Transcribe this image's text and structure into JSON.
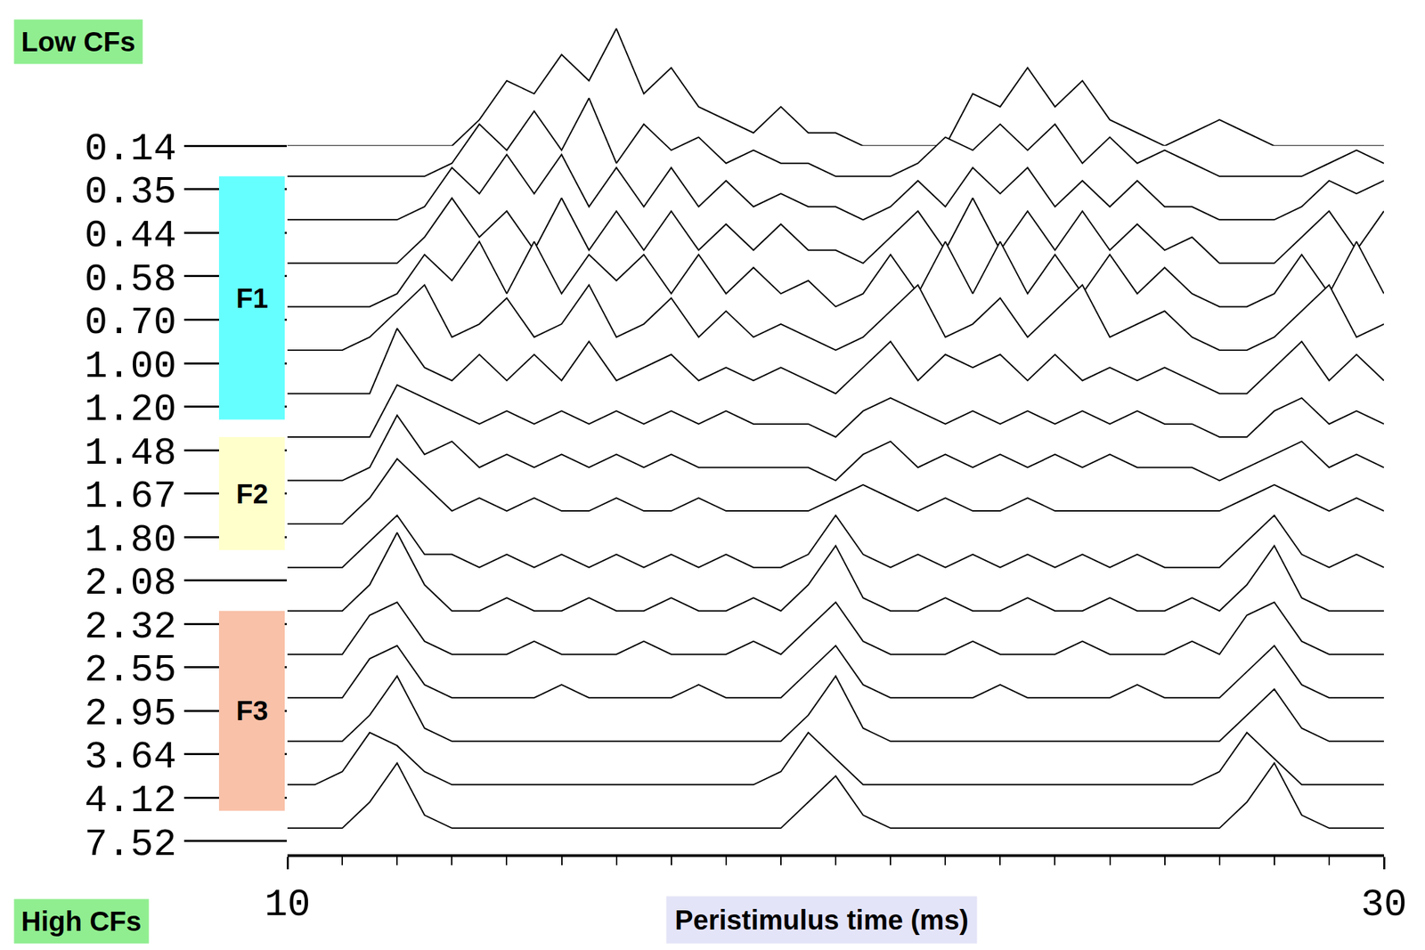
{
  "chart_data": {
    "type": "line",
    "x_label": "Peristimulus time (ms)",
    "top_label": "Low CFs",
    "bottom_label": "High CFs",
    "color": "#000000",
    "grid": false,
    "xlim": [
      10,
      30
    ],
    "xticks": [
      10,
      30
    ],
    "ylim": [
      0,
      10
    ],
    "x": [
      10,
      10.5,
      11,
      11.5,
      12,
      12.5,
      13,
      13.5,
      14,
      14.5,
      15,
      15.5,
      16,
      16.5,
      17,
      17.5,
      18,
      18.5,
      19,
      19.5,
      20,
      20.5,
      21,
      21.5,
      22,
      22.5,
      23,
      23.5,
      24,
      24.5,
      25,
      25.5,
      26,
      26.5,
      27,
      27.5,
      28,
      28.5,
      29,
      29.5,
      30
    ],
    "series": [
      {
        "name": "0.14",
        "values": [
          0,
          0,
          0,
          0,
          0,
          0,
          0,
          2,
          5,
          4,
          7,
          5,
          9,
          4,
          6,
          3,
          2,
          1,
          3,
          1,
          1,
          0,
          0,
          0,
          0,
          4,
          3,
          6,
          3,
          5,
          2,
          1,
          0,
          1,
          2,
          1,
          0,
          0,
          0,
          0,
          0
        ]
      },
      {
        "name": "0.35",
        "values": [
          1,
          1,
          1,
          1,
          1,
          1,
          2,
          5,
          3,
          6,
          3,
          7,
          2,
          5,
          3,
          4,
          2,
          3,
          2,
          2,
          1,
          1,
          1,
          2,
          4,
          3,
          5,
          3,
          5,
          2,
          4,
          2,
          3,
          2,
          1,
          1,
          1,
          1,
          2,
          3,
          2
        ]
      },
      {
        "name": "0.44",
        "values": [
          1,
          1,
          1,
          1,
          1,
          2,
          5,
          3,
          6,
          3,
          6,
          2,
          5,
          2,
          5,
          2,
          4,
          2,
          3,
          2,
          2,
          1,
          2,
          4,
          2,
          5,
          3,
          5,
          2,
          4,
          2,
          4,
          2,
          2,
          1,
          1,
          1,
          2,
          4,
          3,
          4
        ]
      },
      {
        "name": "0.58",
        "values": [
          1,
          1,
          1,
          1,
          1,
          3,
          6,
          3,
          5,
          2,
          6,
          2,
          5,
          2,
          5,
          2,
          4,
          2,
          4,
          2,
          2,
          1,
          3,
          5,
          2,
          6,
          2,
          5,
          2,
          5,
          2,
          4,
          2,
          3,
          1,
          1,
          1,
          3,
          5,
          2,
          5
        ]
      },
      {
        "name": "0.70",
        "values": [
          1,
          1,
          1,
          1,
          2,
          5,
          3,
          6,
          2,
          6,
          2,
          5,
          3,
          5,
          2,
          5,
          2,
          4,
          2,
          3,
          1,
          2,
          5,
          2,
          6,
          2,
          6,
          2,
          5,
          2,
          5,
          2,
          4,
          2,
          1,
          1,
          2,
          5,
          2,
          6,
          2
        ]
      },
      {
        "name": "1.00",
        "values": [
          1,
          1,
          1,
          2,
          4,
          6,
          2,
          3,
          5,
          2,
          3,
          6,
          2,
          3,
          5,
          2,
          4,
          2,
          3,
          2,
          1,
          2,
          4,
          6,
          2,
          3,
          5,
          2,
          4,
          6,
          2,
          3,
          4,
          2,
          1,
          1,
          2,
          4,
          6,
          2,
          3
        ]
      },
      {
        "name": "1.20",
        "values": [
          1,
          1,
          1,
          1,
          6,
          3,
          2,
          4,
          2,
          4,
          2,
          5,
          2,
          3,
          4,
          2,
          3,
          2,
          3,
          2,
          1,
          3,
          5,
          2,
          4,
          3,
          4,
          2,
          4,
          2,
          3,
          2,
          3,
          2,
          1,
          1,
          3,
          5,
          2,
          4,
          2
        ]
      },
      {
        "name": "1.48",
        "values": [
          1,
          1,
          1,
          1,
          5,
          4,
          3,
          2,
          3,
          2,
          3,
          2,
          3,
          2,
          3,
          2,
          3,
          2,
          2,
          2,
          1,
          3,
          4,
          3,
          2,
          3,
          2,
          3,
          2,
          3,
          2,
          3,
          2,
          2,
          1,
          1,
          3,
          4,
          2,
          3,
          2
        ]
      },
      {
        "name": "1.67",
        "values": [
          1,
          1,
          1,
          2,
          6,
          3,
          4,
          2,
          3,
          2,
          3,
          2,
          3,
          2,
          3,
          2,
          2,
          2,
          2,
          2,
          1,
          3,
          4,
          2,
          3,
          2,
          3,
          2,
          3,
          2,
          3,
          2,
          2,
          2,
          1,
          2,
          3,
          4,
          2,
          3,
          2
        ]
      },
      {
        "name": "1.80",
        "values": [
          1,
          1,
          1,
          3,
          6,
          4,
          2,
          3,
          2,
          3,
          2,
          2,
          3,
          2,
          2,
          3,
          2,
          2,
          2,
          2,
          3,
          4,
          3,
          2,
          3,
          2,
          2,
          3,
          2,
          2,
          2,
          2,
          2,
          2,
          2,
          3,
          4,
          3,
          2,
          3,
          2
        ]
      },
      {
        "name": "2.08",
        "values": [
          1,
          1,
          1,
          3,
          5,
          2,
          2,
          1,
          2,
          1,
          2,
          1,
          2,
          1,
          2,
          1,
          2,
          1,
          1,
          2,
          5,
          2,
          1,
          2,
          1,
          2,
          1,
          2,
          1,
          2,
          1,
          2,
          1,
          1,
          1,
          3,
          5,
          2,
          1,
          2,
          1
        ]
      },
      {
        "name": "2.32",
        "values": [
          1,
          1,
          1,
          3,
          7,
          3,
          1,
          1,
          2,
          1,
          1,
          2,
          1,
          1,
          2,
          1,
          1,
          2,
          1,
          3,
          6,
          2,
          1,
          1,
          2,
          1,
          1,
          2,
          1,
          1,
          2,
          1,
          1,
          2,
          1,
          3,
          6,
          2,
          1,
          1,
          1
        ]
      },
      {
        "name": "2.55",
        "values": [
          1,
          1,
          1,
          4,
          5,
          2,
          1,
          1,
          1,
          2,
          1,
          1,
          1,
          2,
          1,
          1,
          1,
          2,
          1,
          3,
          5,
          2,
          1,
          1,
          1,
          2,
          1,
          1,
          1,
          2,
          1,
          1,
          1,
          2,
          1,
          4,
          5,
          2,
          1,
          1,
          1
        ]
      },
      {
        "name": "2.95",
        "values": [
          1,
          1,
          1,
          4,
          5,
          2,
          1,
          1,
          1,
          1,
          2,
          1,
          1,
          1,
          1,
          2,
          1,
          1,
          1,
          3,
          5,
          2,
          1,
          1,
          1,
          1,
          2,
          1,
          1,
          1,
          1,
          2,
          1,
          1,
          1,
          3,
          5,
          2,
          1,
          1,
          1
        ]
      },
      {
        "name": "3.64",
        "values": [
          1,
          1,
          1,
          3,
          6,
          2,
          1,
          1,
          1,
          1,
          1,
          1,
          1,
          1,
          1,
          1,
          1,
          1,
          1,
          3,
          6,
          2,
          1,
          1,
          1,
          1,
          1,
          1,
          1,
          1,
          1,
          1,
          1,
          1,
          1,
          3,
          5,
          2,
          1,
          1,
          1
        ]
      },
      {
        "name": "4.12",
        "values": [
          1,
          1,
          2,
          5,
          4,
          2,
          1,
          1,
          1,
          1,
          1,
          1,
          1,
          1,
          1,
          1,
          1,
          1,
          2,
          5,
          3,
          1,
          1,
          1,
          1,
          1,
          1,
          1,
          1,
          1,
          1,
          1,
          1,
          1,
          2,
          5,
          3,
          1,
          1,
          1,
          1
        ]
      },
      {
        "name": "7.52",
        "values": [
          1,
          1,
          1,
          3,
          6,
          2,
          1,
          1,
          1,
          1,
          1,
          1,
          1,
          1,
          1,
          1,
          1,
          1,
          1,
          3,
          5,
          2,
          1,
          1,
          1,
          1,
          1,
          1,
          1,
          1,
          1,
          1,
          1,
          1,
          1,
          3,
          6,
          2,
          1,
          1,
          1
        ]
      }
    ],
    "bands": [
      {
        "label": "F1",
        "from": "0.35",
        "to": "1.20",
        "color": "#66ffff"
      },
      {
        "label": "F2",
        "from": "1.48",
        "to": "1.80",
        "color": "#ffffcc"
      },
      {
        "label": "F3",
        "from": "2.32",
        "to": "4.12",
        "color": "#f9c1a8"
      }
    ]
  }
}
